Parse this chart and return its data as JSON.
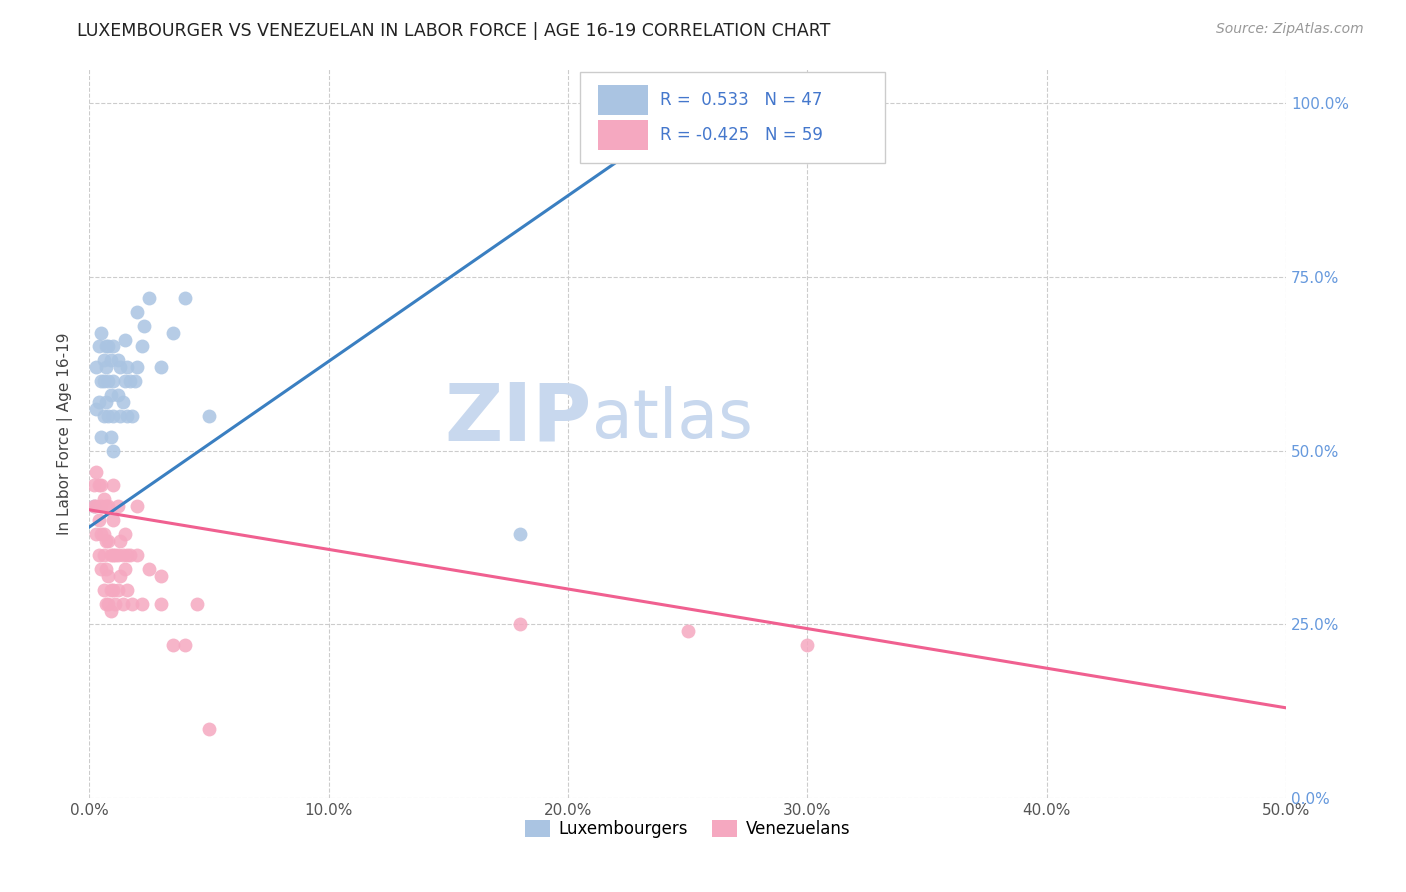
{
  "title": "LUXEMBOURGER VS VENEZUELAN IN LABOR FORCE | AGE 16-19 CORRELATION CHART",
  "source": "Source: ZipAtlas.com",
  "xlabel_ticks": [
    "0.0%",
    "10.0%",
    "20.0%",
    "30.0%",
    "40.0%",
    "50.0%"
  ],
  "ylabel_ticks": [
    "0.0%",
    "25.0%",
    "50.0%",
    "75.0%",
    "100.0%"
  ],
  "xlim": [
    0.0,
    0.5
  ],
  "ylim": [
    0.0,
    1.05
  ],
  "R_lux": 0.533,
  "N_lux": 47,
  "R_ven": -0.425,
  "N_ven": 59,
  "color_lux": "#aac4e2",
  "color_ven": "#f5a8c0",
  "line_color_lux": "#3a7fc1",
  "line_color_ven": "#f06090",
  "watermark_zip": "ZIP",
  "watermark_atlas": "atlas",
  "watermark_color_zip": "#c8d8ee",
  "watermark_color_atlas": "#c8d8ee",
  "lux_scatter_x": [
    0.002,
    0.003,
    0.003,
    0.004,
    0.004,
    0.005,
    0.005,
    0.005,
    0.006,
    0.006,
    0.006,
    0.007,
    0.007,
    0.007,
    0.008,
    0.008,
    0.008,
    0.009,
    0.009,
    0.009,
    0.01,
    0.01,
    0.01,
    0.01,
    0.012,
    0.012,
    0.013,
    0.013,
    0.014,
    0.015,
    0.015,
    0.016,
    0.016,
    0.017,
    0.018,
    0.019,
    0.02,
    0.02,
    0.022,
    0.023,
    0.025,
    0.03,
    0.035,
    0.04,
    0.05,
    0.18,
    0.25
  ],
  "lux_scatter_y": [
    0.42,
    0.56,
    0.62,
    0.57,
    0.65,
    0.52,
    0.6,
    0.67,
    0.55,
    0.6,
    0.63,
    0.57,
    0.62,
    0.65,
    0.55,
    0.6,
    0.65,
    0.52,
    0.58,
    0.63,
    0.5,
    0.55,
    0.6,
    0.65,
    0.58,
    0.63,
    0.55,
    0.62,
    0.57,
    0.6,
    0.66,
    0.55,
    0.62,
    0.6,
    0.55,
    0.6,
    0.62,
    0.7,
    0.65,
    0.68,
    0.72,
    0.62,
    0.67,
    0.72,
    0.55,
    0.38,
    0.97
  ],
  "ven_scatter_x": [
    0.002,
    0.002,
    0.003,
    0.003,
    0.003,
    0.004,
    0.004,
    0.004,
    0.005,
    0.005,
    0.005,
    0.005,
    0.006,
    0.006,
    0.006,
    0.006,
    0.007,
    0.007,
    0.007,
    0.007,
    0.008,
    0.008,
    0.008,
    0.008,
    0.009,
    0.009,
    0.009,
    0.01,
    0.01,
    0.01,
    0.01,
    0.011,
    0.011,
    0.012,
    0.012,
    0.012,
    0.013,
    0.013,
    0.014,
    0.014,
    0.015,
    0.015,
    0.016,
    0.016,
    0.017,
    0.018,
    0.02,
    0.02,
    0.022,
    0.025,
    0.03,
    0.03,
    0.035,
    0.04,
    0.045,
    0.05,
    0.18,
    0.25,
    0.3
  ],
  "ven_scatter_y": [
    0.42,
    0.45,
    0.38,
    0.42,
    0.47,
    0.35,
    0.4,
    0.45,
    0.33,
    0.38,
    0.42,
    0.45,
    0.3,
    0.35,
    0.38,
    0.43,
    0.28,
    0.33,
    0.37,
    0.42,
    0.28,
    0.32,
    0.37,
    0.42,
    0.27,
    0.3,
    0.35,
    0.3,
    0.35,
    0.4,
    0.45,
    0.28,
    0.35,
    0.3,
    0.35,
    0.42,
    0.32,
    0.37,
    0.28,
    0.35,
    0.33,
    0.38,
    0.3,
    0.35,
    0.35,
    0.28,
    0.35,
    0.42,
    0.28,
    0.33,
    0.28,
    0.32,
    0.22,
    0.22,
    0.28,
    0.1,
    0.25,
    0.24,
    0.22
  ],
  "lux_line_x": [
    0.0,
    0.26
  ],
  "lux_line_y": [
    0.39,
    1.01
  ],
  "ven_line_x": [
    0.0,
    0.5
  ],
  "ven_line_y": [
    0.415,
    0.13
  ]
}
